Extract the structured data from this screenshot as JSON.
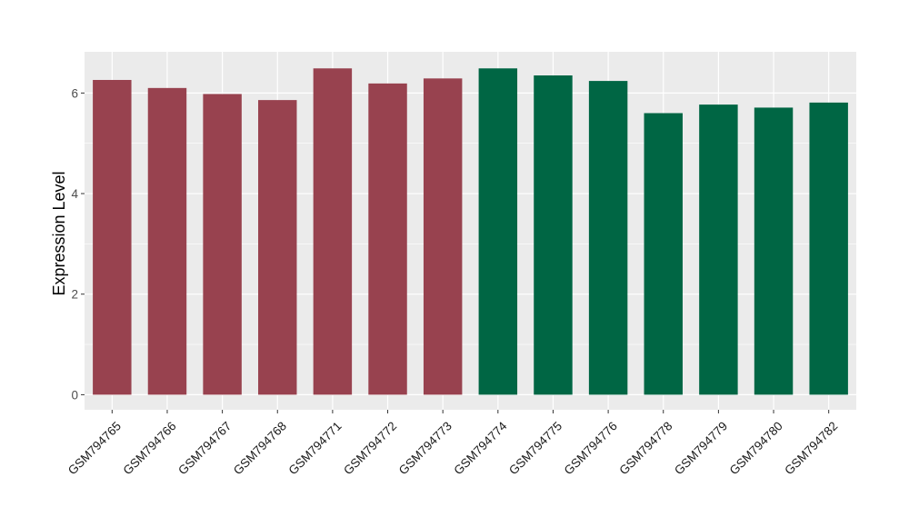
{
  "chart_data": {
    "type": "bar",
    "title": "",
    "xlabel": "",
    "ylabel": "Expression Level",
    "categories": [
      "GSM794765",
      "GSM794766",
      "GSM794767",
      "GSM794768",
      "GSM794771",
      "GSM794772",
      "GSM794773",
      "GSM794774",
      "GSM794775",
      "GSM794776",
      "GSM794778",
      "GSM794779",
      "GSM794780",
      "GSM794782"
    ],
    "values": [
      6.26,
      6.1,
      5.98,
      5.86,
      6.49,
      6.19,
      6.29,
      6.49,
      6.35,
      6.24,
      5.6,
      5.77,
      5.71,
      5.81
    ],
    "bar_colors": [
      "#98424F",
      "#98424F",
      "#98424F",
      "#98424F",
      "#98424F",
      "#98424F",
      "#98424F",
      "#006644",
      "#006644",
      "#006644",
      "#006644",
      "#006644",
      "#006644",
      "#006644"
    ],
    "ylim": [
      -0.3,
      6.82
    ],
    "y_ticks": [
      0,
      2,
      4,
      6
    ],
    "y_tick_labels": [
      "0",
      "2",
      "4",
      "6"
    ],
    "grid": true,
    "legend": false,
    "panel_background": "#EBEBEB",
    "grid_color": "#FFFFFF"
  }
}
